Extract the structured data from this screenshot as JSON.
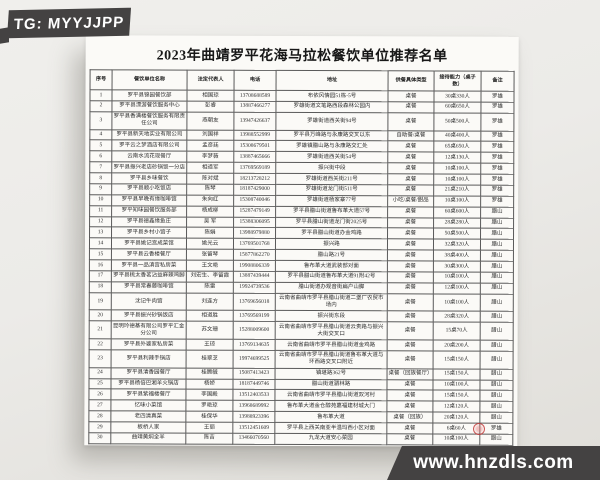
{
  "watermarks": {
    "top_left": "TG: MYYJJPP",
    "bottom_right": "www.hnzdls.com"
  },
  "page": {
    "title": "2023年曲靖罗平花海马拉松餐饮单位推荐名单",
    "table": {
      "columns": [
        "序号",
        "餐饮单位名称",
        "法定代表人",
        "电话",
        "地址",
        "供餐具体类型",
        "接待能力（桌子数）",
        "备注"
      ],
      "rows": [
        [
          "1",
          "罗平县锦园餐饮部",
          "相国琼",
          "13708688589",
          "布依风情园51栋-5号",
          "桌餐",
          "30桌330人",
          "罗雄"
        ],
        [
          "2",
          "罗平县漂游餐饮服务中心",
          "彭睿",
          "13887466277",
          "罗雄街道文笔路西段森林公园内",
          "桌餐",
          "60桌650人",
          "罗雄"
        ],
        [
          "3",
          "罗平县香满楼餐饮服务有限责任公司",
          "燕朝友",
          "13947426637",
          "罗雄街道西关街94号",
          "桌餐",
          "50桌500人",
          "罗雄"
        ],
        [
          "4",
          "罗平县新天地实业有限公司",
          "刘国祥",
          "13988552999",
          "罗平县万峰路与永康路交叉以东",
          "自助餐/桌餐",
          "40桌400人",
          "罗雄"
        ],
        [
          "5",
          "罗平云之梦酒店有限公司",
          "孟彦廷",
          "15308679501",
          "罗雄镇腊山路与永康路交汇处",
          "桌餐",
          "65桌650人",
          "罗雄"
        ],
        [
          "6",
          "云南水流花现餐厅",
          "李梦薇",
          "13887465666",
          "罗雄街道西关街54号",
          "桌餐",
          "12桌130人",
          "罗雄"
        ],
        [
          "7",
          "罗平县振兴老店砂锅饭一分店",
          "相道军",
          "13769569189",
          "振兴街中段",
          "桌餐",
          "10桌100人",
          "罗雄"
        ],
        [
          "8",
          "罗平县乡味餐饮",
          "陈对斌",
          "18213728212",
          "罗雄街道西关街211号",
          "桌餐",
          "10桌100人",
          "罗雄"
        ],
        [
          "9",
          "罗平县顺小吃饭店",
          "陈琴",
          "18187429000",
          "罗雄街道龙门街511号",
          "桌餐",
          "21桌210人",
          "罗雄"
        ],
        [
          "10",
          "罗平县早晚有缘咖啡馆",
          "朱向红",
          "15308740046",
          "罗雄街道杨家寨77号",
          "小吃/桌餐/甜品",
          "10桌100人",
          "罗雄"
        ],
        [
          "11",
          "罗平知味园餐饮服务部",
          "杨成柳",
          "15287479149",
          "罗平县腊山街道鲁布革大道57号",
          "桌餐",
          "60桌600人",
          "腊山"
        ],
        [
          "12",
          "罗平县德鑫缘鱼庄",
          "吴 军",
          "15388306095",
          "罗平县腊山街道龙门街2025号",
          "桌餐",
          "28桌280人",
          "腊山"
        ],
        [
          "13",
          "罗平县乡村小馆子",
          "陈娟",
          "13988979880",
          "罗平县腊山街道办金鸡路",
          "桌餐",
          "50桌500人",
          "腊山"
        ],
        [
          "14",
          "罗平县姚记宫成菜馆",
          "姚光云",
          "13769501768",
          "振兴路",
          "桌餐",
          "32桌320人",
          "腊山"
        ],
        [
          "15",
          "罗平县云香楼餐厅",
          "张留琴",
          "15877862270",
          "腊山路21号",
          "桌餐",
          "38桌400人",
          "腊山"
        ],
        [
          "16",
          "罗平县一品滇宫私房菜",
          "王文艳",
          "19908806339",
          "鲁布革大道武装部对面",
          "桌餐",
          "30桌300人",
          "腊山"
        ],
        [
          "17",
          "罗平县桃太香茗沾益麻辣鸡脚",
          "刘宏生、李留霞",
          "13887439444",
          "罗平县腊山街道鲁布革大道91附42号",
          "桌餐",
          "10桌100人",
          "腊山"
        ],
        [
          "18",
          "罗平县常春藤咖啡馆",
          "陈雷",
          "19924739536",
          "腊山街道办观音街扁户山脚",
          "桌餐",
          "12桌100人",
          "腊山"
        ],
        [
          "19",
          "沈记牛肉馆",
          "刘连方",
          "13769656018",
          "云南省曲靖市罗平县腊山街道二堡厂农贸市场内",
          "桌餐",
          "10桌100人",
          "腊山"
        ],
        [
          "20",
          "罗平县振兴砂锅饭店",
          "相道胜",
          "13769569199",
          "振兴街东段",
          "桌餐",
          "28桌320人",
          "腊山"
        ],
        [
          "21",
          "昆明玲德基有限公司罗平汇金分公司",
          "苏文珊",
          "15288009600",
          "云南省曲靖市罗平县腊山街道云贵路与振兴大街交叉口",
          "桌餐",
          "15桌70人",
          "腊山"
        ],
        [
          "22",
          "罗平县外婆家私房菜",
          "王琼",
          "13769134635",
          "云南省曲靖市罗平县腊山街道金鸡路",
          "桌餐",
          "20桌200人",
          "腊山"
        ],
        [
          "23",
          "罗平县利辣手锅店",
          "桂翠芝",
          "19974699525",
          "云南省曲靖市罗平县腊山街道鲁布革大道与环西路交叉口附近",
          "桌餐",
          "15桌150人",
          "腊山"
        ],
        [
          "24",
          "罗平县清香园餐厅",
          "桂腾毓",
          "15087413423",
          "镇堪路362号",
          "桌餐（回族餐厅）",
          "15桌150人",
          "腊山"
        ],
        [
          "25",
          "罗平县杨倍巴湘羊火锅店",
          "杨娇",
          "18187449746",
          "腊山街道驷林路",
          "桌餐",
          "10桌100人",
          "腊山"
        ],
        [
          "26",
          "罗平县紫福楼餐厅",
          "李国殿",
          "13512403533",
          "云南省曲靖市罗平县腊山街道双河村",
          "桌餐",
          "15桌150人",
          "腊山"
        ],
        [
          "27",
          "忆味小菜馆",
          "罗艳琼",
          "13968689992",
          "鲁布革大道金仓醇苑嘉福建材城大门",
          "桌餐",
          "12桌120人",
          "腊山"
        ],
        [
          "28",
          "老四清真菜",
          "桂保华",
          "13988923396",
          "鲁布革大道",
          "桌餐（回族）",
          "20桌120人",
          "腊山"
        ],
        [
          "29",
          "板桥人家",
          "王丽",
          "13512451609",
          "罗平县上西关南亚半温玛西小区对面",
          "桌餐",
          "6桌60人",
          "罗雄"
        ],
        [
          "30",
          "曲靖黄焖全羊",
          "陈吉",
          "13466070560",
          "九龙大道安心菜园",
          "桌餐",
          "10桌100人",
          "腊山"
        ]
      ]
    }
  },
  "colors": {
    "badge_bg": "#444242",
    "badge_text": "#ffffff",
    "page_bg": "#fbfaf7",
    "photo_bg": "#ebeae6",
    "table_border": "#5a5a5a",
    "stamp_red": "#c63a3a"
  }
}
